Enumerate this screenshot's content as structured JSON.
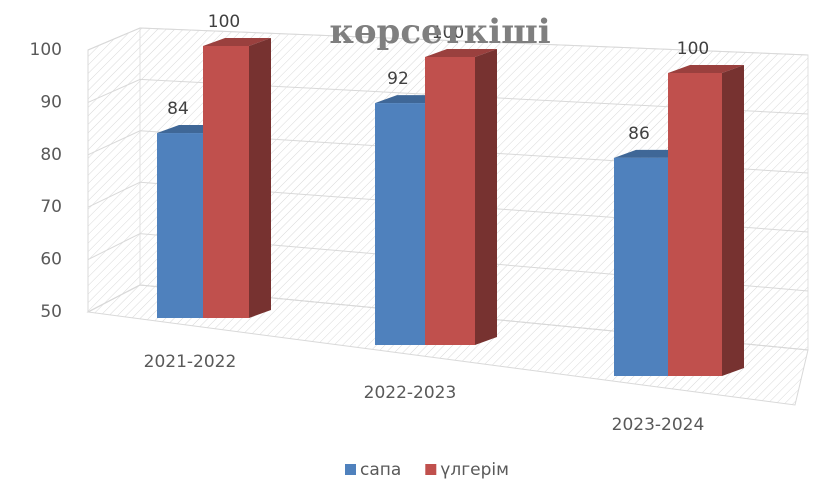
{
  "chart_data": {
    "type": "bar3d",
    "title": "көрсеткіші",
    "categories": [
      "2021-2022",
      "2022-2023",
      "2023-2024"
    ],
    "series": [
      {
        "name": "сапа",
        "color": "#4f81bd",
        "values": [
          84,
          92,
          86
        ]
      },
      {
        "name": "үлгерім",
        "color": "#c0504d",
        "values": [
          100,
          100,
          100
        ]
      }
    ],
    "ylim": [
      50,
      100
    ],
    "yticks": [
      50,
      60,
      70,
      80,
      90,
      100
    ],
    "grid": true,
    "legend": "bottom"
  }
}
